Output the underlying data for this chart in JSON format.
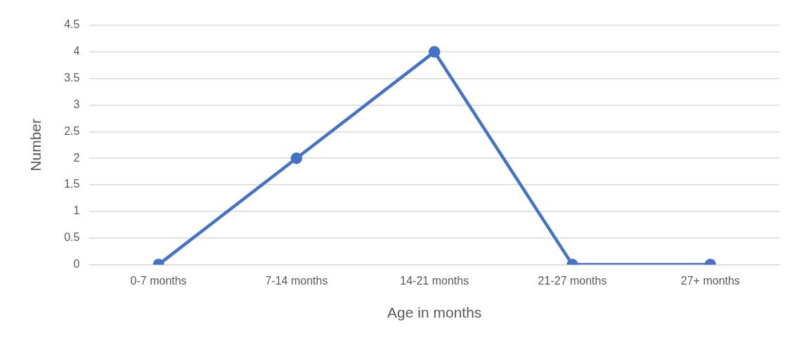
{
  "chart_data": {
    "type": "line",
    "xlabel": "Age in months",
    "ylabel": "Number",
    "categories": [
      "0-7 months",
      "7-14 months",
      "14-21 months",
      "21-27 months",
      "27+ months"
    ],
    "series": [
      {
        "color": "#4472c4",
        "values": [
          0,
          2,
          4,
          0,
          0
        ]
      }
    ],
    "ylim": [
      0,
      4.5
    ],
    "yticks": [
      0,
      0.5,
      1,
      1.5,
      2,
      2.5,
      3,
      3.5,
      4,
      4.5
    ],
    "grid": "y",
    "legend": false,
    "marker": "circle",
    "line_style": "solid"
  }
}
